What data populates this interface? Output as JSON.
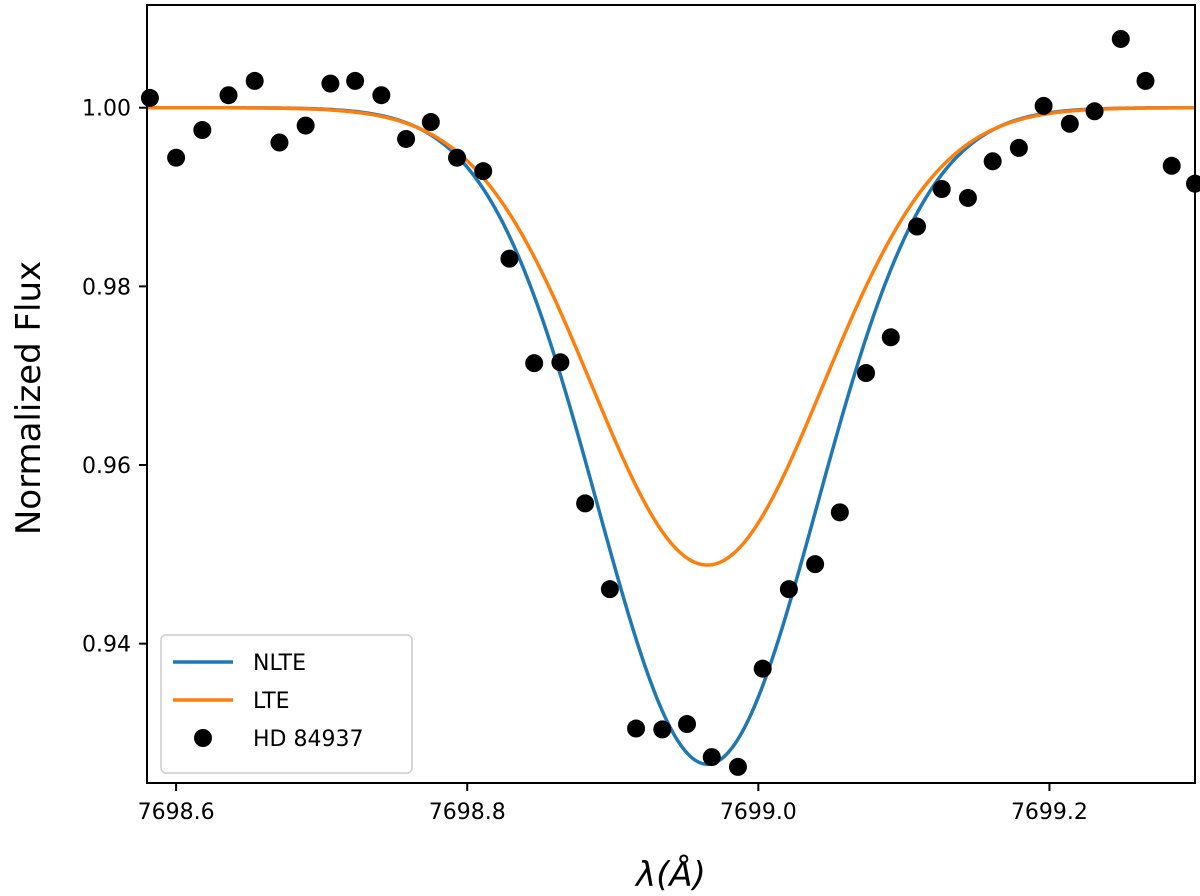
{
  "chart_data": {
    "type": "line",
    "title": "",
    "xlabel": "λ(Å)",
    "ylabel": "Normalized Flux",
    "xlim": [
      7698.58,
      7699.3
    ],
    "ylim": [
      0.9244,
      1.0115
    ],
    "xticks": [
      7698.6,
      7698.8,
      7699.0,
      7699.2
    ],
    "xtick_labels": [
      "7698.6",
      "7698.8",
      "7699.0",
      "7699.2"
    ],
    "yticks": [
      0.94,
      0.96,
      0.98,
      1.0
    ],
    "ytick_labels": [
      "0.94",
      "0.96",
      "0.98",
      "1.00"
    ],
    "grid": false,
    "legend_position": "lower-left",
    "series": [
      {
        "name": "NLTE",
        "kind": "line",
        "color": "#1f77b4",
        "model": {
          "continuum": 1.0,
          "center": 7698.965,
          "depth": 0.0735,
          "sigma": 0.0753
        }
      },
      {
        "name": "LTE",
        "kind": "line",
        "color": "#ff7f0e",
        "model": {
          "continuum": 1.0,
          "center": 7698.965,
          "depth": 0.0512,
          "sigma": 0.0795
        }
      },
      {
        "name": "HD 84937",
        "kind": "scatter",
        "color": "#000000",
        "x": [
          7698.582,
          7698.6,
          7698.618,
          7698.636,
          7698.654,
          7698.671,
          7698.689,
          7698.706,
          7698.723,
          7698.741,
          7698.758,
          7698.775,
          7698.793,
          7698.811,
          7698.829,
          7698.846,
          7698.864,
          7698.881,
          7698.898,
          7698.916,
          7698.934,
          7698.951,
          7698.968,
          7698.986,
          7699.003,
          7699.021,
          7699.039,
          7699.056,
          7699.074,
          7699.091,
          7699.109,
          7699.126,
          7699.144,
          7699.161,
          7699.179,
          7699.196,
          7699.214,
          7699.231,
          7699.249,
          7699.266,
          7699.284,
          7699.3
        ],
        "y": [
          1.0011,
          0.9944,
          0.9975,
          1.0014,
          1.003,
          0.9961,
          0.998,
          1.0027,
          1.003,
          1.0014,
          0.9965,
          0.9984,
          0.9944,
          0.9929,
          0.9831,
          0.9714,
          0.9715,
          0.9557,
          0.9461,
          0.9305,
          0.9304,
          0.931,
          0.9273,
          0.9262,
          0.9372,
          0.9461,
          0.9489,
          0.9547,
          0.9703,
          0.9743,
          0.9867,
          0.9909,
          0.9899,
          0.994,
          0.9955,
          1.0002,
          0.9982,
          0.9996,
          1.0077,
          1.003,
          0.9935,
          0.9915
        ]
      }
    ]
  }
}
